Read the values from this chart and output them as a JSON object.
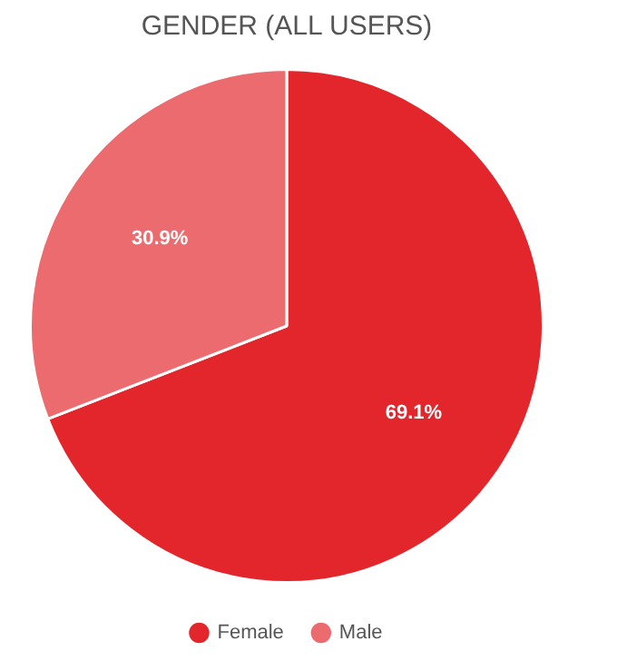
{
  "chart_data": {
    "type": "pie",
    "title": "GENDER (ALL USERS)",
    "categories": [
      "Female",
      "Male"
    ],
    "values": [
      69.1,
      30.9
    ],
    "colors": [
      "#e3262c",
      "#ec6b6f"
    ],
    "value_labels": [
      "69.1%",
      "30.9%"
    ],
    "legend": "bottom"
  }
}
